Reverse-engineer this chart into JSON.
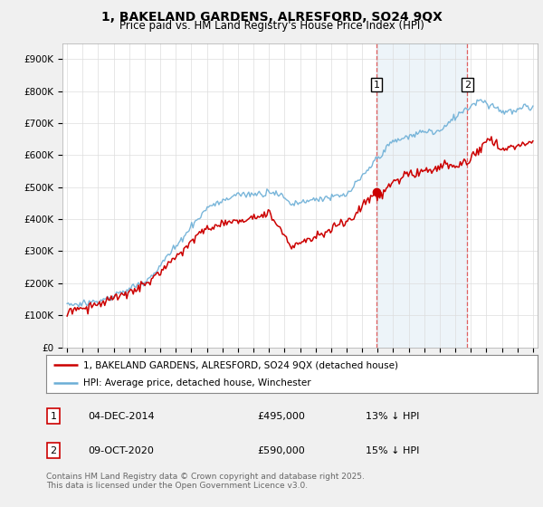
{
  "title": "1, BAKELAND GARDENS, ALRESFORD, SO24 9QX",
  "subtitle": "Price paid vs. HM Land Registry's House Price Index (HPI)",
  "legend_line1": "1, BAKELAND GARDENS, ALRESFORD, SO24 9QX (detached house)",
  "legend_line2": "HPI: Average price, detached house, Winchester",
  "annotation1_label": "1",
  "annotation1_date": "04-DEC-2014",
  "annotation1_price": "£495,000",
  "annotation1_hpi": "13% ↓ HPI",
  "annotation2_label": "2",
  "annotation2_date": "09-OCT-2020",
  "annotation2_price": "£590,000",
  "annotation2_hpi": "15% ↓ HPI",
  "footer": "Contains HM Land Registry data © Crown copyright and database right 2025.\nThis data is licensed under the Open Government Licence v3.0.",
  "hpi_color": "#6baed6",
  "price_color": "#cc0000",
  "vline_color": "#e06060",
  "highlight_color": "#cce0f0",
  "ylim": [
    0,
    950000
  ],
  "yticks": [
    0,
    100000,
    200000,
    300000,
    400000,
    500000,
    600000,
    700000,
    800000,
    900000
  ],
  "ytick_labels": [
    "£0",
    "£100K",
    "£200K",
    "£300K",
    "£400K",
    "£500K",
    "£600K",
    "£700K",
    "£800K",
    "£900K"
  ],
  "year_start": 1995,
  "year_end": 2025,
  "sale1_year": 2014.92,
  "sale2_year": 2020.78,
  "background_color": "#f0f0f0"
}
